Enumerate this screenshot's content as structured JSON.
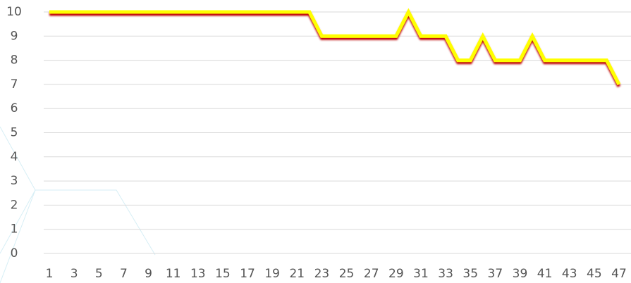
{
  "chart_data": {
    "type": "line",
    "x": [
      1,
      2,
      3,
      4,
      5,
      6,
      7,
      8,
      9,
      10,
      11,
      12,
      13,
      14,
      15,
      16,
      17,
      18,
      19,
      20,
      21,
      22,
      23,
      24,
      25,
      26,
      27,
      28,
      29,
      30,
      31,
      32,
      33,
      34,
      35,
      36,
      37,
      38,
      39,
      40,
      41,
      42,
      43,
      44,
      45,
      46,
      47
    ],
    "series": [
      {
        "color": "#ffff00",
        "values": [
          10,
          10,
          10,
          10,
          10,
          10,
          10,
          10,
          10,
          10,
          10,
          10,
          10,
          10,
          10,
          10,
          10,
          10,
          10,
          10,
          10,
          10,
          9,
          9,
          9,
          9,
          9,
          9,
          9,
          10,
          9,
          9,
          9,
          8,
          8,
          9,
          8,
          8,
          8,
          9,
          8,
          8,
          8,
          8,
          8,
          8,
          7
        ]
      }
    ],
    "xlim": [
      1,
      47
    ],
    "xticks": [
      1,
      3,
      5,
      7,
      9,
      11,
      13,
      15,
      17,
      19,
      21,
      23,
      25,
      27,
      29,
      31,
      33,
      35,
      37,
      39,
      41,
      43,
      45,
      47
    ],
    "ylim": [
      0,
      10
    ],
    "yticks": [
      0,
      1,
      2,
      3,
      4,
      5,
      6,
      7,
      8,
      9,
      10
    ],
    "grid": true
  }
}
